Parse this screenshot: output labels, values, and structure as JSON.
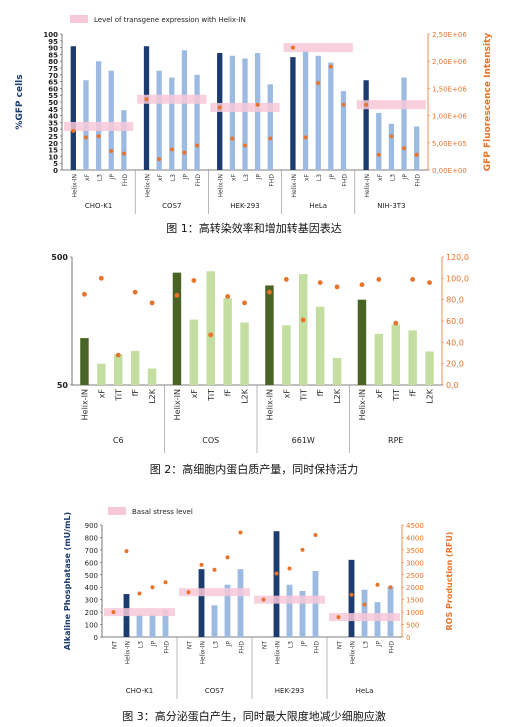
{
  "captions": {
    "fig1": "图 1：高转染效率和增加转基因表达",
    "fig2": "图 2：高细胞内蛋白质产量，同时保持活力",
    "fig3": "图 3：高分泌蛋白产生，同时最大限度地减少细胞应激"
  },
  "colors": {
    "dark_blue": "#1c3b6e",
    "light_blue": "#9dbbe2",
    "dark_green": "#4a6425",
    "light_green": "#c3dea0",
    "orange": "#e8732a",
    "pink": "#f7c8d8",
    "axis": "#555555",
    "right_axis": "#e8732a"
  },
  "chart_data": [
    {
      "type": "bar",
      "legend": {
        "label": "Level of transgene expression with Helix-IN",
        "position": "top-left"
      },
      "ylabel": "%GFP cells",
      "y2label": "GFP Fluorescence Intensity",
      "ylim": [
        0,
        100
      ],
      "yticks": [
        "0",
        "5",
        "10",
        "15",
        "20",
        "25",
        "30",
        "35",
        "40",
        "45",
        "50",
        "55",
        "60",
        "65",
        "70",
        "75",
        "80",
        "85",
        "90",
        "95",
        "100"
      ],
      "y2lim": [
        0,
        2500000
      ],
      "y2ticks": [
        "0,00E+00",
        "5,00E+05",
        "1,00E+06",
        "1,50E+06",
        "2,00E+06",
        "2,50E+06"
      ],
      "groups": [
        {
          "name": "CHO-K1",
          "labels": [
            "Helix-IN",
            "xF",
            "L3",
            "JP",
            "FHD"
          ],
          "values": [
            91,
            66,
            80,
            73,
            44
          ],
          "points": [
            0.72,
            0.6,
            0.62,
            0.35,
            0.3
          ],
          "band": 0.8
        },
        {
          "name": "COS7",
          "labels": [
            "Helix-IN",
            "xF",
            "L3",
            "JP",
            "FHD"
          ],
          "values": [
            91,
            73,
            68,
            88,
            70
          ],
          "points": [
            1.3,
            0.2,
            0.38,
            0.32,
            0.45
          ],
          "band": 1.3
        },
        {
          "name": "HEK-293",
          "labels": [
            "Helix-IN",
            "xF",
            "L3",
            "JP",
            "FHD"
          ],
          "values": [
            86,
            84,
            82,
            86,
            63
          ],
          "points": [
            1.15,
            0.58,
            0.45,
            1.2,
            0.58
          ],
          "band": 1.15
        },
        {
          "name": "HeLa",
          "labels": [
            "Helix-IN",
            "xF",
            "L3",
            "JP",
            "FHD"
          ],
          "values": [
            83,
            88,
            84,
            79,
            58
          ],
          "points": [
            2.25,
            0.6,
            1.6,
            1.9,
            1.2
          ],
          "band": 2.25
        },
        {
          "name": "NIH-3T3",
          "labels": [
            "Helix-IN",
            "xF",
            "L3",
            "JP",
            "FHD"
          ],
          "values": [
            66,
            42,
            34,
            68,
            32
          ],
          "points": [
            1.2,
            0.28,
            0.62,
            0.4,
            0.28
          ],
          "band": 1.2
        }
      ]
    },
    {
      "type": "bar",
      "ylim": [
        50,
        500
      ],
      "yticks": [
        "50",
        "500"
      ],
      "y2lim": [
        0,
        120
      ],
      "y2ticks": [
        "0,0",
        "20,0",
        "40,0",
        "60,0",
        "80,0",
        "100,0",
        "120,0"
      ],
      "groups": [
        {
          "name": "C6",
          "labels": [
            "Helix-IN",
            "xF",
            "TiT",
            "fF",
            "L2K"
          ],
          "values": [
            215,
            125,
            158,
            170,
            108
          ],
          "points": [
            85,
            100,
            28,
            87,
            77
          ]
        },
        {
          "name": "COS",
          "labels": [
            "Helix-IN",
            "xF",
            "TiT",
            "fF",
            "L2K"
          ],
          "values": [
            445,
            280,
            450,
            355,
            270
          ],
          "points": [
            84,
            98,
            47,
            83,
            77
          ]
        },
        {
          "name": "661W",
          "labels": [
            "Helix-IN",
            "xF",
            "TiT",
            "fF",
            "L2K"
          ],
          "values": [
            400,
            260,
            440,
            325,
            145
          ],
          "points": [
            87,
            99,
            61,
            96,
            92
          ]
        },
        {
          "name": "RPE",
          "labels": [
            "Helix-IN",
            "xF",
            "TiT",
            "fF",
            "L2K"
          ],
          "values": [
            350,
            230,
            263,
            242,
            168
          ],
          "points": [
            94,
            99,
            58,
            99,
            96
          ]
        }
      ]
    },
    {
      "type": "bar",
      "legend": {
        "label": "Basal stress level",
        "position": "top-left"
      },
      "ylabel": "Alkaline Phosphatase (mU/mL)",
      "y2label": "ROS Production (RFU)",
      "ylim": [
        0,
        900
      ],
      "yticks": [
        "0",
        "100",
        "200",
        "300",
        "400",
        "500",
        "600",
        "700",
        "800",
        "900"
      ],
      "y2lim": [
        0,
        4500
      ],
      "y2ticks": [
        "0",
        "500",
        "1000",
        "1500",
        "2000",
        "2500",
        "3000",
        "3500",
        "4000",
        "4500"
      ],
      "groups": [
        {
          "name": "CHO-K1",
          "labels": [
            "NT",
            "Helix-IN",
            "L3",
            "JP",
            "FHD"
          ],
          "values": [
            0,
            345,
            180,
            185,
            220
          ],
          "points": [
            1000,
            3450,
            1750,
            2000,
            2200
          ],
          "band": 1000
        },
        {
          "name": "COS7",
          "labels": [
            "NT",
            "Helix-IN",
            "L3",
            "JP",
            "FHD"
          ],
          "values": [
            0,
            545,
            255,
            420,
            545
          ],
          "points": [
            1800,
            2900,
            2700,
            3200,
            4200
          ],
          "band": 1800
        },
        {
          "name": "HEK-293",
          "labels": [
            "NT",
            "Helix-IN",
            "L3",
            "JP",
            "FHD"
          ],
          "values": [
            0,
            850,
            420,
            370,
            530
          ],
          "points": [
            1500,
            2550,
            2750,
            3500,
            4100
          ],
          "band": 1500
        },
        {
          "name": "HeLa",
          "labels": [
            "NT",
            "Helix-IN",
            "L3",
            "JP",
            "FHD"
          ],
          "values": [
            0,
            620,
            380,
            280,
            405
          ],
          "points": [
            800,
            1700,
            1300,
            2100,
            2000
          ],
          "band": 800
        }
      ]
    }
  ]
}
